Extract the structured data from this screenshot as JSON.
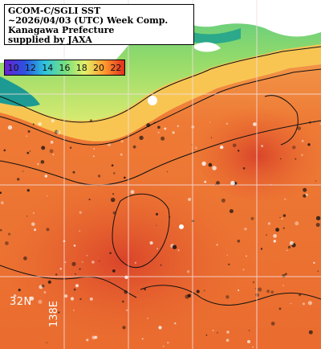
{
  "title": {
    "lines": [
      "GCOM-C/SGLI SST",
      "~2026/04/03 (UTC) Week Comp.",
      "Kanagawa Prefecture",
      "supplied by JAXA"
    ]
  },
  "legend": {
    "ticks": [
      "10",
      "12",
      "14",
      "16",
      "18",
      "20",
      "22"
    ],
    "colors": [
      "#6a1fd0",
      "#2a52e0",
      "#2ec4dd",
      "#73df80",
      "#e4f06a",
      "#ff9a2e",
      "#e12d1e",
      "#ffffff"
    ]
  },
  "grid": {
    "lat_label": "32N",
    "lon_label": "138E",
    "line_color": "#f4dede"
  },
  "colors": {
    "warm": "#ee7a35",
    "hot": "#de4a27",
    "cool": "#f8c553",
    "cold": "#94db6a",
    "coast": "#1c9a93",
    "land": "#ffffff",
    "contour": "#111111"
  }
}
